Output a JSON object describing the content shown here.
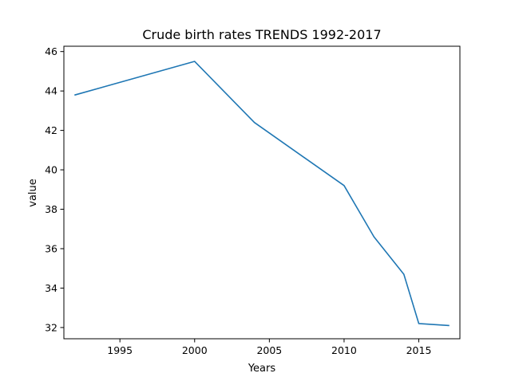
{
  "chart_data": {
    "type": "line",
    "title": "Crude birth rates TRENDS 1992-2017",
    "xlabel": "Years",
    "ylabel": "value",
    "x": [
      1992,
      2000,
      2004,
      2010,
      2012,
      2014,
      2015,
      2017
    ],
    "series": [
      {
        "values": [
          43.8,
          45.5,
          42.4,
          39.2,
          36.6,
          34.7,
          32.2,
          32.1
        ]
      }
    ],
    "xlim": [
      1991.25,
      2017.75
    ],
    "ylim": [
      31.43,
      46.27
    ],
    "xticks": [
      1995,
      2000,
      2005,
      2010,
      2015
    ],
    "yticks": [
      32,
      34,
      36,
      38,
      40,
      42,
      44,
      46
    ],
    "grid": false,
    "line_color": "#1f77b4"
  }
}
